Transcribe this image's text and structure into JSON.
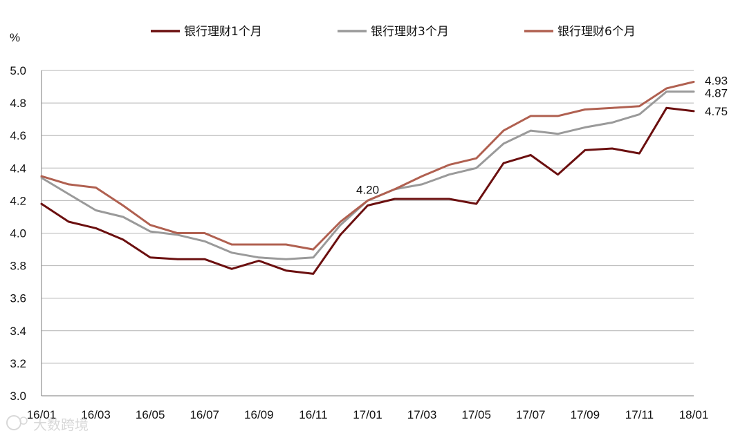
{
  "chart_data": {
    "type": "line",
    "unit_label": "%",
    "ylim": [
      3.0,
      5.0
    ],
    "yticks": [
      "3.0",
      "3.2",
      "3.4",
      "3.6",
      "3.8",
      "4.0",
      "4.2",
      "4.4",
      "4.6",
      "4.8",
      "5.0"
    ],
    "grid": true,
    "legend_position": "top",
    "x": [
      "16/01",
      "16/02",
      "16/03",
      "16/04",
      "16/05",
      "16/06",
      "16/07",
      "16/08",
      "16/09",
      "16/10",
      "16/11",
      "16/12",
      "17/01",
      "17/02",
      "17/03",
      "17/04",
      "17/05",
      "17/06",
      "17/07",
      "17/08",
      "17/09",
      "17/10",
      "17/11",
      "17/12",
      "18/01"
    ],
    "xtick_labels": [
      "16/01",
      "16/03",
      "16/05",
      "16/07",
      "16/09",
      "16/11",
      "17/01",
      "17/03",
      "17/05",
      "17/07",
      "17/09",
      "17/11",
      "18/01"
    ],
    "series": [
      {
        "name": "银行理财1个月",
        "color": "#6b0f0f",
        "values": [
          4.18,
          4.07,
          4.03,
          3.96,
          3.85,
          3.84,
          3.84,
          3.78,
          3.83,
          3.77,
          3.75,
          3.99,
          4.17,
          4.21,
          4.21,
          4.21,
          4.18,
          4.43,
          4.48,
          4.36,
          4.51,
          4.52,
          4.49,
          4.77,
          4.75
        ]
      },
      {
        "name": "银行理财3个月",
        "color": "#9a9a9a",
        "values": [
          4.34,
          4.24,
          4.14,
          4.1,
          4.01,
          3.99,
          3.95,
          3.88,
          3.85,
          3.84,
          3.85,
          4.05,
          4.2,
          4.27,
          4.3,
          4.36,
          4.4,
          4.55,
          4.63,
          4.61,
          4.65,
          4.68,
          4.73,
          4.87,
          4.87
        ]
      },
      {
        "name": "银行理财6个月",
        "color": "#b06050",
        "values": [
          4.35,
          4.3,
          4.28,
          4.17,
          4.05,
          4.0,
          4.0,
          3.93,
          3.93,
          3.93,
          3.9,
          4.07,
          4.2,
          4.27,
          4.35,
          4.42,
          4.46,
          4.63,
          4.72,
          4.72,
          4.76,
          4.77,
          4.78,
          4.89,
          4.93
        ]
      }
    ],
    "annotations": [
      {
        "text": "4.20",
        "x": "17/01",
        "y": 4.2
      },
      {
        "text": "4.93",
        "x": "18/01",
        "y": 4.93
      },
      {
        "text": "4.87",
        "x": "18/01",
        "y": 4.87
      },
      {
        "text": "4.75",
        "x": "18/01",
        "y": 4.75
      }
    ]
  },
  "watermark": {
    "text": "大数跨境",
    "icon": "watermark-logo-icon"
  }
}
